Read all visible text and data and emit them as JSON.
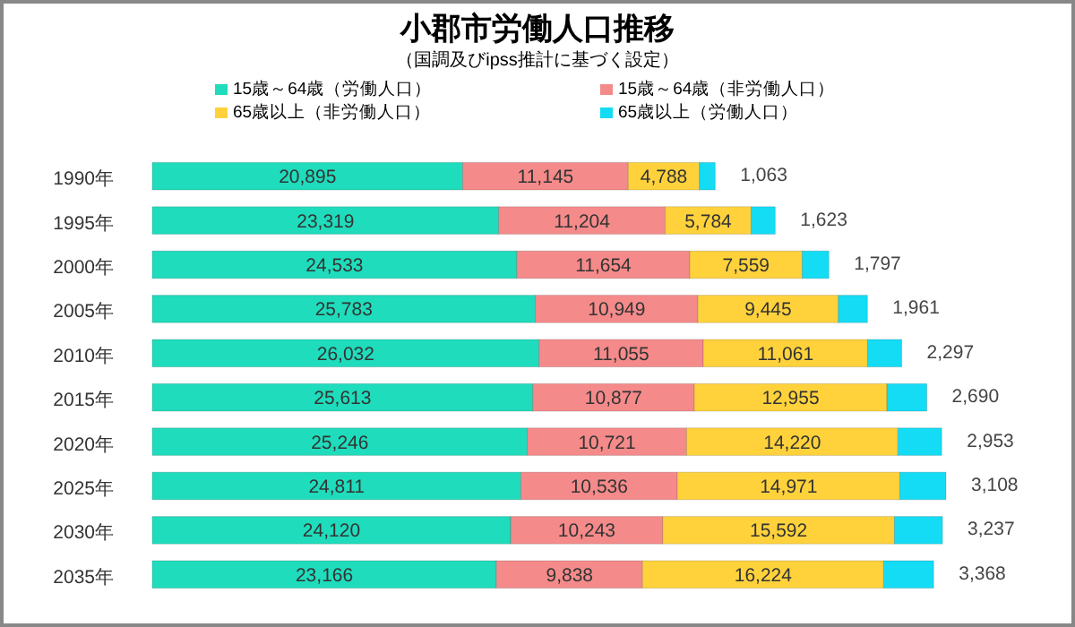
{
  "chart_data": {
    "type": "bar",
    "orientation": "horizontal",
    "stacked": true,
    "legend": "top",
    "title": "小郡市労働人口推移",
    "subtitle": "（国調及びipss推計に基づく設定）",
    "categories": [
      "1990年",
      "1995年",
      "2000年",
      "2005年",
      "2010年",
      "2015年",
      "2020年",
      "2025年",
      "2030年",
      "2035年"
    ],
    "series": [
      {
        "name": "15歳～64歳（労働人口）",
        "color": "#1fdcbc",
        "values": [
          20895,
          23319,
          24533,
          25783,
          26032,
          25613,
          25246,
          24811,
          24120,
          23166
        ],
        "value_labels": [
          "20,895",
          "23,319",
          "24,533",
          "25,783",
          "26,032",
          "25,613",
          "25,246",
          "24,811",
          "24,120",
          "23,166"
        ]
      },
      {
        "name": "15歳～64歳（非労働人口）",
        "color": "#f58a8a",
        "values": [
          11145,
          11204,
          11654,
          10949,
          11055,
          10877,
          10721,
          10536,
          10243,
          9838
        ],
        "value_labels": [
          "11,145",
          "11,204",
          "11,654",
          "10,949",
          "11,055",
          "10,877",
          "10,721",
          "10,536",
          "10,243",
          "9,838"
        ]
      },
      {
        "name": "65歳以上（非労働人口）",
        "color": "#ffd23c",
        "values": [
          4788,
          5784,
          7559,
          9445,
          11061,
          12955,
          14220,
          14971,
          15592,
          16224
        ],
        "value_labels": [
          "4,788",
          "5,784",
          "7,559",
          "9,445",
          "11,061",
          "12,955",
          "14,220",
          "14,971",
          "15,592",
          "16,224"
        ]
      },
      {
        "name": "65歳以上（労働人口）",
        "color": "#14dcf5",
        "values": [
          1063,
          1623,
          1797,
          1961,
          2297,
          2690,
          2953,
          3108,
          3237,
          3368
        ],
        "value_labels": [
          "1,063",
          "1,623",
          "1,797",
          "1,961",
          "2,297",
          "2,690",
          "2,953",
          "3,108",
          "3,237",
          "3,368"
        ]
      }
    ]
  }
}
